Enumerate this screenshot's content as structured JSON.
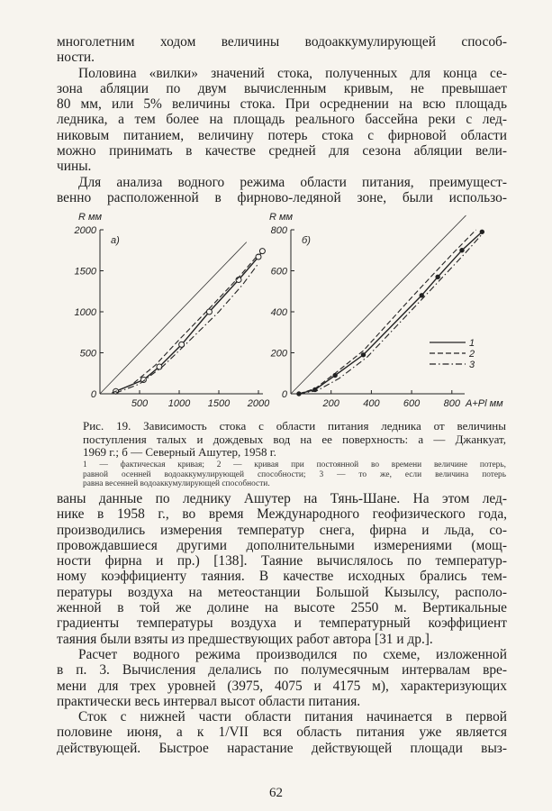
{
  "top_text": [
    {
      "t": "многолетним ходом величины водоаккумулирующей способ-"
    },
    {
      "t": "ности.",
      "last": true
    },
    {
      "t": "Половина «вилки» значений стока, полученных для конца се-",
      "ind": true
    },
    {
      "t": "зона абляции по двум вычисленным кривым, не превышает"
    },
    {
      "t": "80 мм, или 5% величины стока. При осреднении на всю площадь"
    },
    {
      "t": "ледника, а тем более на площадь реального бассейна реки с лед-"
    },
    {
      "t": "никовым питанием, величину потерь стока с фирновой области"
    },
    {
      "t": "можно принимать в качестве средней для сезона абляции вели-"
    },
    {
      "t": "чины.",
      "last": true
    },
    {
      "t": "Для анализа водного режима области питания, преимущест-",
      "ind": true
    },
    {
      "t": "венно расположенной в фирново-ледяной зоне, были использо-"
    }
  ],
  "figure": {
    "caption": [
      "Рис. 19. Зависимость стока с области питания ледника от величины",
      "поступления талых и дождевых вод на ее поверхность: а — Джанкуат,",
      "1969 г.; б — Северный Ашутер, 1958 г."
    ],
    "legend_text": [
      "1 — фактическая кривая; 2 — кривая при постоянной во времени величине потерь,",
      "равной осенней водоаккумулирующей способности; 3 — то же, если величина потерь",
      "равна весенней водоаккумулирующей способности."
    ]
  },
  "chart_data": [
    {
      "type": "line",
      "panel": "а)",
      "ylabel": "R мм",
      "xlabel": "",
      "xlim": [
        0,
        2000
      ],
      "ylim": [
        0,
        2000
      ],
      "xticks": [
        500,
        1000,
        1500,
        2000
      ],
      "yticks": [
        0,
        500,
        1000,
        1500,
        2000
      ],
      "reference_line": {
        "x": [
          0,
          1850
        ],
        "y": [
          0,
          1850
        ]
      },
      "series": [
        {
          "name": "1",
          "style": "solid",
          "markers": "circle",
          "x": [
            200,
            550,
            750,
            1030,
            1380,
            1750,
            2000,
            2050
          ],
          "y": [
            30,
            170,
            330,
            600,
            1000,
            1390,
            1670,
            1740
          ]
        },
        {
          "name": "2",
          "style": "dashed",
          "x": [
            150,
            400,
            700,
            1000,
            1400,
            1750,
            2000
          ],
          "y": [
            10,
            110,
            350,
            660,
            1060,
            1420,
            1700
          ]
        },
        {
          "name": "3",
          "style": "dash-dot",
          "x": [
            200,
            500,
            800,
            1100,
            1500,
            1800,
            2000
          ],
          "y": [
            10,
            120,
            340,
            620,
            1000,
            1330,
            1590
          ]
        }
      ]
    },
    {
      "type": "line",
      "panel": "б)",
      "ylabel": "R мм",
      "xlabel": "A+Pl мм",
      "xlim": [
        0,
        950
      ],
      "ylim": [
        0,
        800
      ],
      "xticks": [
        200,
        400,
        600,
        800
      ],
      "yticks": [
        0,
        200,
        400,
        600,
        800
      ],
      "reference_line": {
        "x": [
          0,
          870
        ],
        "y": [
          0,
          870
        ]
      },
      "series": [
        {
          "name": "1",
          "style": "solid",
          "markers": "dot",
          "x": [
            40,
            120,
            220,
            360,
            650,
            730,
            850,
            950
          ],
          "y": [
            0,
            20,
            90,
            190,
            480,
            570,
            700,
            790
          ]
        },
        {
          "name": "2",
          "style": "dashed",
          "x": [
            40,
            120,
            220,
            360,
            600,
            800,
            920
          ],
          "y": [
            0,
            25,
            100,
            210,
            470,
            680,
            800
          ]
        },
        {
          "name": "3",
          "style": "dash-dot",
          "x": [
            40,
            130,
            240,
            380,
            650,
            870,
            960
          ],
          "y": [
            0,
            15,
            75,
            180,
            460,
            690,
            790
          ]
        }
      ],
      "legend": {
        "placement": "right",
        "entries": [
          "1",
          "2",
          "3"
        ]
      }
    }
  ],
  "bottom_text": [
    {
      "t": "ваны данные по леднику Ашутер на Тянь-Шане. На этом лед-"
    },
    {
      "t": "нике в 1958 г., во время Международного геофизического года,"
    },
    {
      "t": "производились измерения температур снега, фирна и льда, со-"
    },
    {
      "t": "провождавшиеся другими дополнительными измерениями (мощ-"
    },
    {
      "t": "ности фирна и пр.) [138]. Таяние вычислялось по температур-"
    },
    {
      "t": "ному коэффициенту таяния. В качестве исходных брались тем-"
    },
    {
      "t": "пературы воздуха на метеостанции Большой Кызылсу, располо-"
    },
    {
      "t": "женной в той же долине на высоте 2550 м. Вертикальные"
    },
    {
      "t": "градиенты температуры воздуха и температурный коэффициент"
    },
    {
      "t": "таяния были взяты из предшествующих работ автора [31 и др.].",
      "last": true
    },
    {
      "t": "Расчет водного режима производился по схеме, изложенной",
      "ind": true
    },
    {
      "t": "в п. 3. Вычисления делались по полумесячным интервалам вре-"
    },
    {
      "t": "мени для трех уровней (3975, 4075 и 4175 м), характеризующих"
    },
    {
      "t": "практически весь интервал высот области питания.",
      "last": true
    },
    {
      "t": "Сток с нижней части области питания начинается в первой",
      "ind": true
    },
    {
      "t": "половине июня, а к 1/VII вся область питания уже является"
    },
    {
      "t": "действующей. Быстрое нарастание действующей площади выз-"
    }
  ],
  "page_number": "62"
}
